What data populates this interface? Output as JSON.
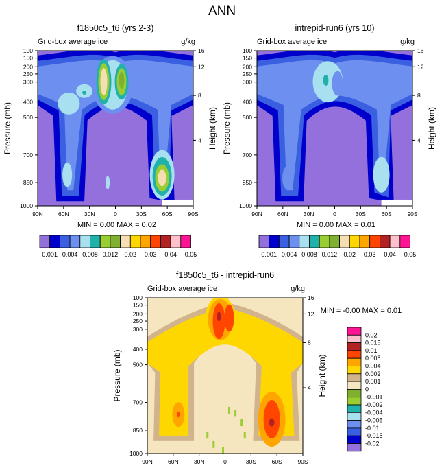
{
  "figure_title": "ANN",
  "colors": {
    "background": "#9370db",
    "top_palette": [
      "#9370db",
      "#0000cd",
      "#3a5fe0",
      "#6d8ff0",
      "#a8e0f0",
      "#20b2aa",
      "#9acd32",
      "#7fb030",
      "#f5deb3",
      "#ffd700",
      "#ffa500",
      "#ff4500",
      "#b22222",
      "#ffc0cb",
      "#ff1493"
    ],
    "diff_palette": [
      "#9370db",
      "#0000cd",
      "#3a5fe0",
      "#6d8ff0",
      "#a8e0f0",
      "#20b2aa",
      "#9acd32",
      "#7fb030",
      "#f5e6c0",
      "#d2b48c",
      "#ffd700",
      "#ffa500",
      "#ff4500",
      "#b22222",
      "#ffc0cb",
      "#ff1493"
    ]
  },
  "chart_data": [
    {
      "type": "contour",
      "title": "f1850c5_t6 (yrs 2-3)",
      "subtitle_left": "Grid-box average ice",
      "subtitle_right": "g/kg",
      "ylabel": "Pressure (mb)",
      "ylabel_right": "Height (km)",
      "x_ticks": [
        "90N",
        "60N",
        "30N",
        "0",
        "30S",
        "60S",
        "90S"
      ],
      "y_ticks": [
        "100",
        "150",
        "200",
        "250",
        "300",
        "400",
        "500",
        "700",
        "850",
        "1000"
      ],
      "y_ticks_right": [
        "16",
        "12",
        "8",
        "4"
      ],
      "min_max": "MIN =   0.00  MAX =   0.02"
    },
    {
      "type": "contour",
      "title": "intrepid-run6 (yrs 10)",
      "subtitle_left": "Grid-box average ice",
      "subtitle_right": "g/kg",
      "ylabel": "Pressure (mb)",
      "ylabel_right": "Height (km)",
      "x_ticks": [
        "90N",
        "60N",
        "30N",
        "0",
        "30S",
        "60S",
        "90S"
      ],
      "y_ticks": [
        "100",
        "150",
        "200",
        "250",
        "300",
        "400",
        "500",
        "700",
        "850",
        "1000"
      ],
      "y_ticks_right": [
        "16",
        "12",
        "8",
        "4"
      ],
      "min_max": "MIN =   0.00  MAX =   0.01"
    },
    {
      "type": "contour",
      "title": "f1850c5_t6 - intrepid-run6",
      "subtitle_left": "Grid-box average ice",
      "subtitle_right": "g/kg",
      "ylabel": "Pressure (mb)",
      "ylabel_right": "Height (km)",
      "x_ticks": [
        "90N",
        "60N",
        "30N",
        "0",
        "30S",
        "60S",
        "90S"
      ],
      "y_ticks": [
        "100",
        "150",
        "200",
        "250",
        "300",
        "400",
        "500",
        "700",
        "850",
        "1000"
      ],
      "y_ticks_right": [
        "16",
        "12",
        "8",
        "4"
      ],
      "min_max": "MIN =  -0.00  MAX =   0.01"
    }
  ],
  "top_colorbar_labels": [
    "0.001",
    "0.004",
    "0.008",
    "0.012",
    "0.02",
    "0.03",
    "0.04",
    "0.05"
  ],
  "diff_colorbar_labels": [
    "0.02",
    "0.015",
    "0.01",
    "0.005",
    "0.004",
    "0.002",
    "0.001",
    "0",
    "-0.001",
    "-0.002",
    "-0.004",
    "-0.005",
    "-0.01",
    "-0.015",
    "-0.02"
  ]
}
